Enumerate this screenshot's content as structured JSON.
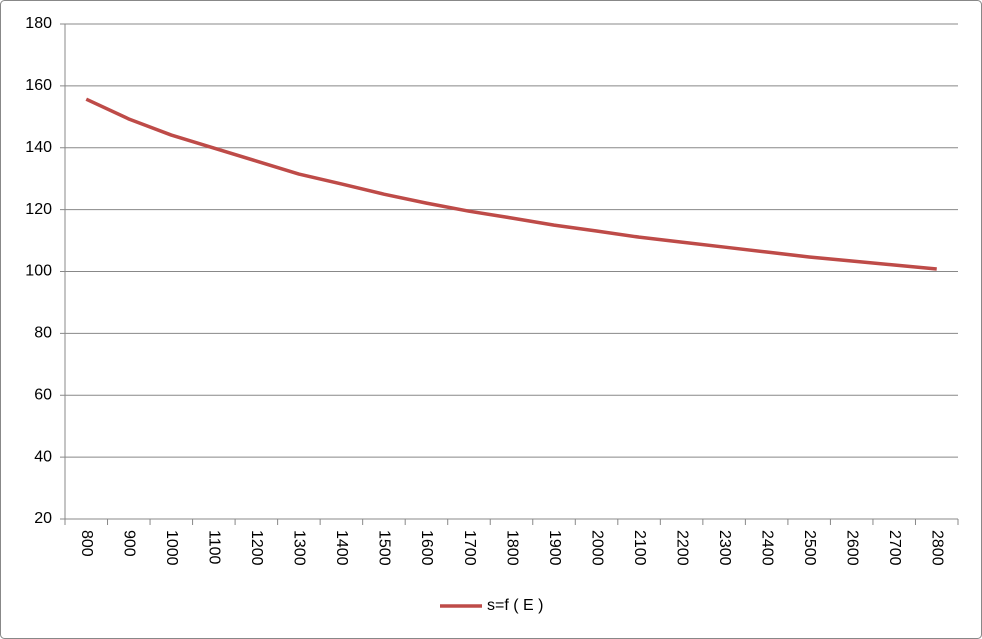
{
  "chart_data": {
    "type": "line",
    "categories": [
      "800",
      "900",
      "1000",
      "1100",
      "1200",
      "1300",
      "1400",
      "1500",
      "1600",
      "1700",
      "1800",
      "1900",
      "2000",
      "2100",
      "2200",
      "2300",
      "2400",
      "2500",
      "2600",
      "2700",
      "2800"
    ],
    "series": [
      {
        "name": "s=f ( E )",
        "color": "#be4b48",
        "values": [
          155.7,
          149.3,
          144.1,
          139.9,
          135.7,
          131.5,
          128.3,
          125,
          122.1,
          119.5,
          117.3,
          115,
          113.1,
          111.1,
          109.5,
          107.9,
          106.3,
          104.7,
          103.4,
          102.1,
          100.8
        ]
      }
    ],
    "ylim": [
      20,
      180
    ],
    "yticks": [
      20,
      40,
      60,
      80,
      100,
      120,
      140,
      160,
      180
    ],
    "grid": true,
    "legend": "bottom"
  }
}
